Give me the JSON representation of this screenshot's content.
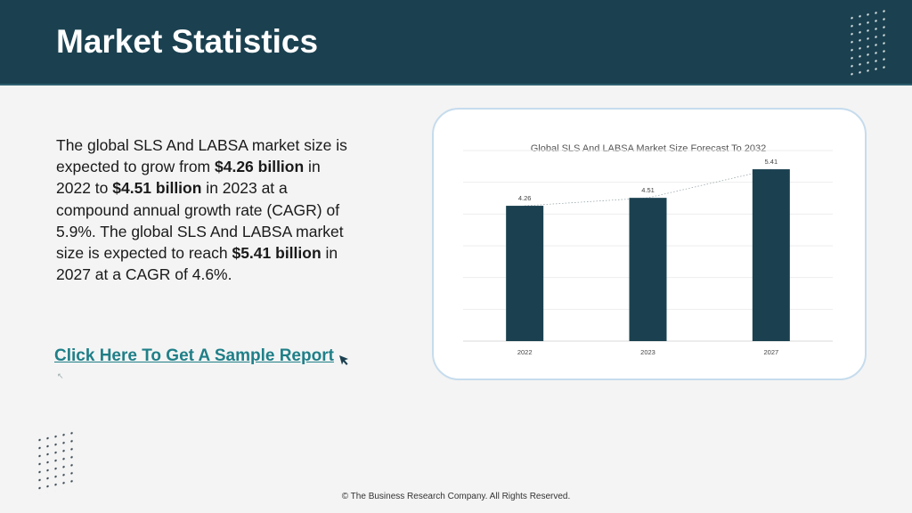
{
  "header": {
    "title": "Market Statistics"
  },
  "stats": {
    "p1": "The global SLS And LABSA market size is expected to grow from ",
    "b1": "$4.26 billion",
    "p2": " in 2022 to ",
    "b2": "$4.51 billion",
    "p3": " in 2023 at a compound annual growth rate (CAGR) of 5.9%. The global SLS And LABSA market size is expected to reach ",
    "b3": "$5.41 billion",
    "p4": " in 2027 at a CAGR of 4.6%."
  },
  "cta": {
    "label": "Click Here To Get A Sample Report"
  },
  "footer": {
    "text": "© The Business Research Company. All Rights Reserved."
  },
  "colors": {
    "header_bg": "#1b4150",
    "bar": "#1b4150",
    "link": "#1f7f88"
  },
  "chart_data": {
    "type": "bar",
    "title": "Global SLS And LABSA Market Size Forecast To 2032",
    "categories": [
      "2022",
      "2023",
      "2027"
    ],
    "values": [
      4.26,
      4.51,
      5.41
    ],
    "data_labels": [
      "4.26",
      "4.51",
      "5.41"
    ],
    "xlabel": "",
    "ylabel": "",
    "ylim": [
      0,
      6
    ],
    "grid": true,
    "trendline": "dotted"
  }
}
